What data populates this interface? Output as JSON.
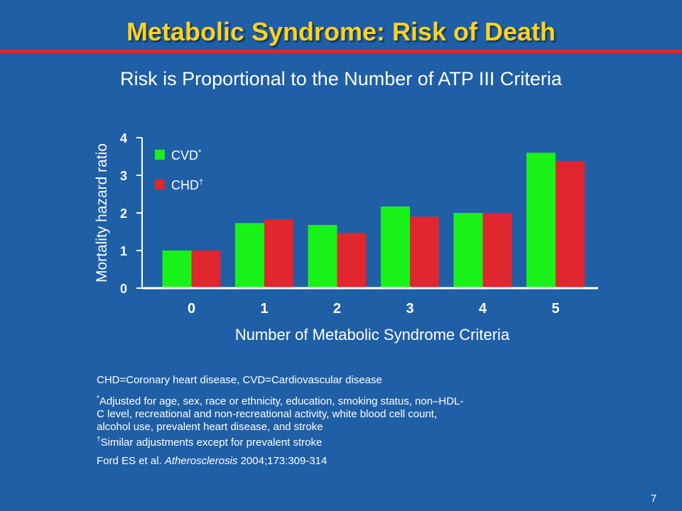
{
  "slide": {
    "title": "Metabolic Syndrome: Risk of Death",
    "subtitle": "Risk is Proportional to the Number of ATP III Criteria",
    "page_number": "7"
  },
  "notes": {
    "abbreviations": "CHD=Coronary heart disease, CVD=Cardiovascular disease",
    "cvd_marker": "*",
    "cvd_footnote": "Adjusted for age, sex, race or ethnicity, education, smoking status, non–HDL-C level, recreational and non-recreational activity, white blood cell count, alcohol use, prevalent heart disease, and stroke",
    "chd_marker": "†",
    "chd_footnote": "Similar adjustments except for prevalent stroke",
    "citation_authors": "Ford ES et al. ",
    "citation_journal": "Atherosclerosis",
    "citation_rest": " 2004;173:309-314"
  },
  "colors": {
    "background": "#1f5fa6",
    "title": "#ffd21f",
    "rule": "#e0262e",
    "cvd": "#19f219",
    "chd": "#e0262e",
    "axis": "#ffffff"
  },
  "chart_data": {
    "type": "bar",
    "categories": [
      "0",
      "1",
      "2",
      "3",
      "4",
      "5"
    ],
    "series": [
      {
        "name": "CVD",
        "marker": "*",
        "values": [
          1.0,
          1.73,
          1.68,
          2.17,
          2.0,
          3.6
        ]
      },
      {
        "name": "CHD",
        "marker": "†",
        "values": [
          1.0,
          1.83,
          1.47,
          1.9,
          2.0,
          3.38
        ]
      }
    ],
    "xlabel": "Number of Metabolic Syndrome Criteria",
    "ylabel": "Mortality hazard ratio",
    "ylim": [
      0,
      4
    ],
    "yticks": [
      0,
      1,
      2,
      3,
      4
    ],
    "legend_position": "top-left",
    "grid": false
  }
}
